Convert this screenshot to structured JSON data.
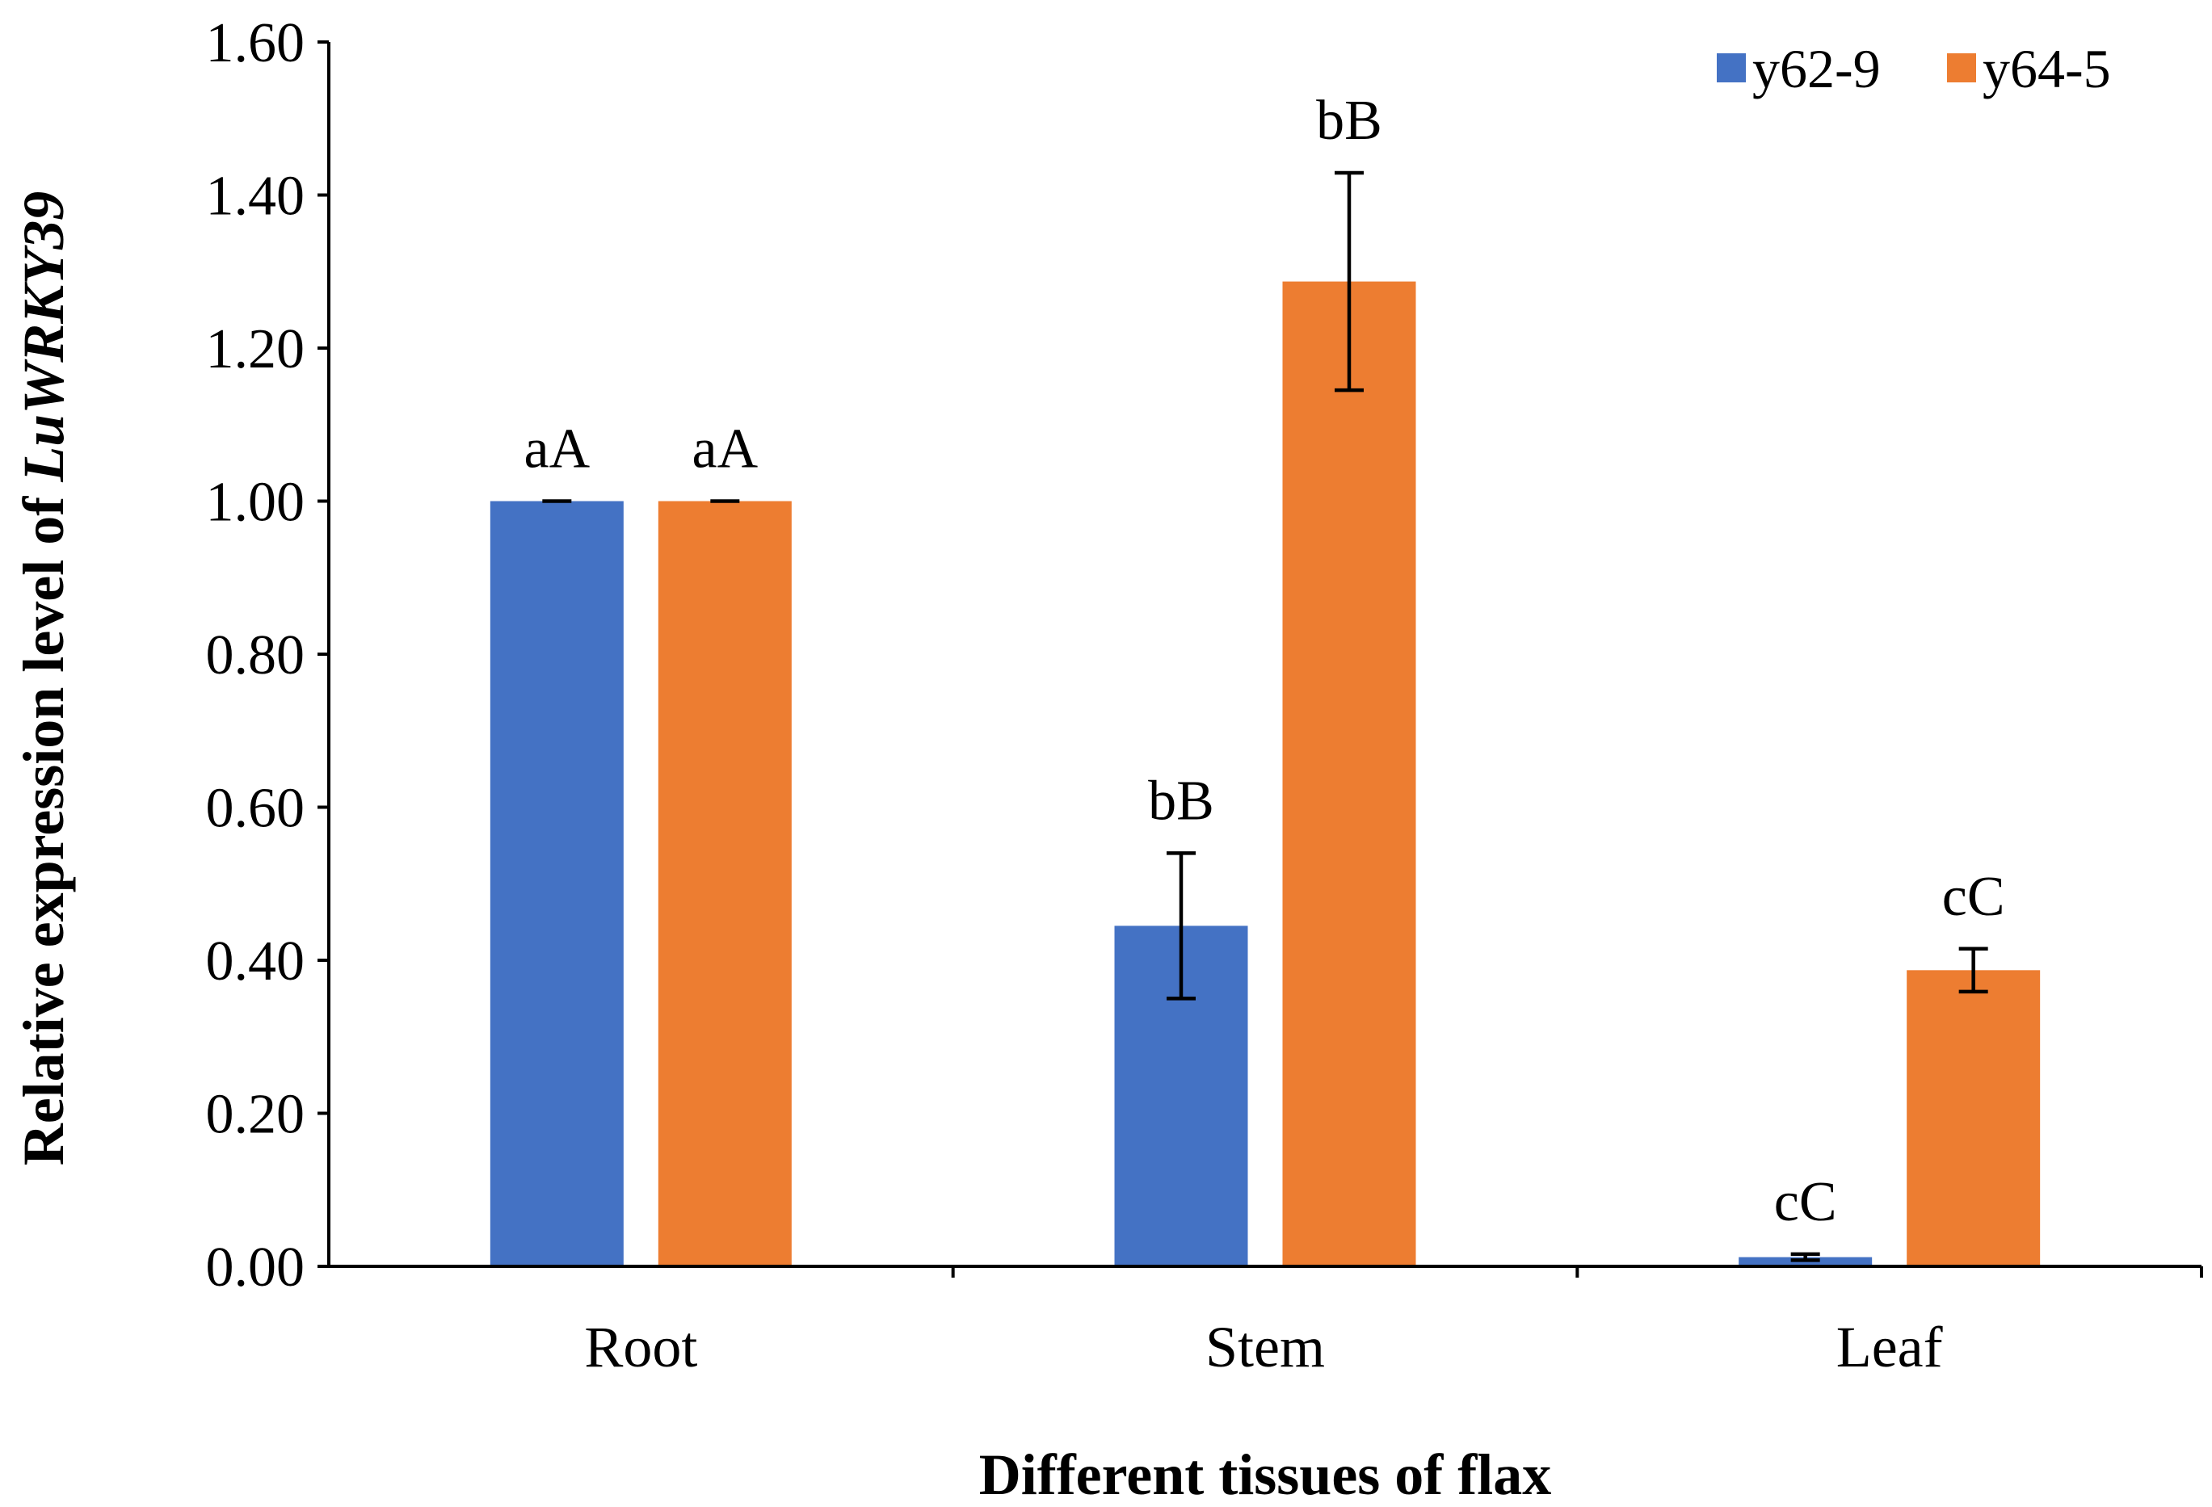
{
  "chart_data": {
    "type": "bar",
    "title": "",
    "xlabel": "Different tissues of flax",
    "ylabel_prefix": "Relative expression level of ",
    "ylabel_gene": "LuWRKY39",
    "ylim": [
      0,
      1.6
    ],
    "ytick_step": 0.2,
    "ytick_labels": [
      "0.00",
      "0.20",
      "0.40",
      "0.60",
      "0.80",
      "1.00",
      "1.20",
      "1.40",
      "1.60"
    ],
    "categories": [
      "Root",
      "Stem",
      "Leaf"
    ],
    "legend_position": "top-right",
    "series": [
      {
        "name": "y62-9",
        "color": "#4472C4",
        "values": [
          1.0,
          0.445,
          0.012
        ],
        "errors": [
          0.0,
          0.095,
          0.004
        ],
        "labels": [
          "aA",
          "bB",
          "cC"
        ]
      },
      {
        "name": "y64-5",
        "color": "#ED7D31",
        "values": [
          1.0,
          1.287,
          0.387
        ],
        "errors": [
          0.0,
          0.142,
          0.028
        ],
        "labels": [
          "aA",
          "bB",
          "cC"
        ]
      }
    ]
  }
}
